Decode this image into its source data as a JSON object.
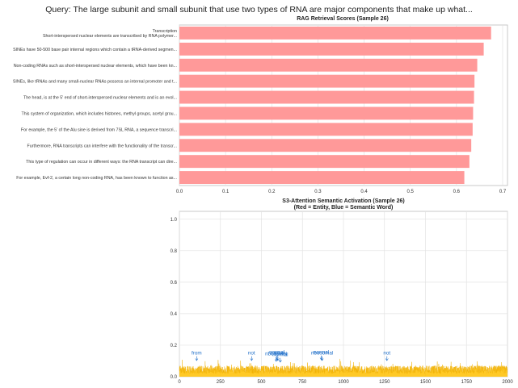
{
  "suptitle": "Query: The large subunit and small subunit that use two types of RNA are major components that make up what...",
  "chart_data": [
    {
      "type": "bar",
      "orientation": "horizontal",
      "title": "RAG Retrieval Scores (Sample 26)",
      "xlabel": "",
      "ylabel": "",
      "xlim": [
        0,
        0.7
      ],
      "xticks": [
        "0.0",
        "0.1",
        "0.2",
        "0.3",
        "0.4",
        "0.5",
        "0.6",
        "0.7"
      ],
      "grid": true,
      "bar_color": "#ff9999",
      "categories": [
        "Transcription\nShort-interspersed nuclear elements are transcribed by RNA polymer...",
        "SINEs have 50-500 base pair internal regions which contain a tRNA-derived segmen...",
        "Non-coding RNAs  such as short-interspersed nuclear elements, which have been kn...",
        "SINEs, like tRNAs and many small-nuclear RNAs possess an internal promoter and t...",
        "The head, is at the 5' end of short-interspersed nuclear elements and is an evol...",
        "This system of organization, which includes histones, methyl groups, acetyl grou...",
        "For example, the 5' of the Alu sine is derived from 7SL RNA, a sequence transcri...",
        "Furthermore, RNA transcripts can interfere with the functionality of the transcr...",
        "This type of regulation can occur in different ways: the RNA transcript can dire...",
        "For example, Evf-2, a certain long non-coding RNA, has been known to function as..."
      ],
      "values": [
        0.675,
        0.659,
        0.645,
        0.639,
        0.638,
        0.636,
        0.635,
        0.632,
        0.628,
        0.617
      ]
    },
    {
      "type": "area",
      "title": "S3-Attention Semantic Activation (Sample 26)\n(Red = Entity, Blue = Semantic Word)",
      "xlabel": "",
      "ylabel": "",
      "xlim": [
        0,
        2000
      ],
      "ylim": [
        0,
        1.05
      ],
      "xticks": [
        "0",
        "250",
        "500",
        "750",
        "1000",
        "1250",
        "1500",
        "1750",
        "2000"
      ],
      "yticks": [
        "0.0",
        "0.2",
        "0.4",
        "0.6",
        "0.8",
        "1.0"
      ],
      "grid": true,
      "fill_color": "#ffc000",
      "line_color": "#f0b000",
      "n_points": 2000,
      "baseline": 0.04,
      "noise_amplitude": 0.05,
      "annotation_color": "#1f6fc9",
      "annotations": [
        {
          "text": "from",
          "x": 105,
          "y": 0.13
        },
        {
          "text": "not",
          "x": 440,
          "y": 0.13
        },
        {
          "text": "normal",
          "x": 595,
          "y": 0.135
        },
        {
          "text": "cancer",
          "x": 600,
          "y": 0.13
        },
        {
          "text": "ribosomal",
          "x": 590,
          "y": 0.125
        },
        {
          "text": "normal",
          "x": 615,
          "y": 0.12
        },
        {
          "text": "normal",
          "x": 865,
          "y": 0.135
        },
        {
          "text": "ribosomal",
          "x": 870,
          "y": 0.13
        },
        {
          "text": "not",
          "x": 1265,
          "y": 0.13
        }
      ]
    }
  ]
}
